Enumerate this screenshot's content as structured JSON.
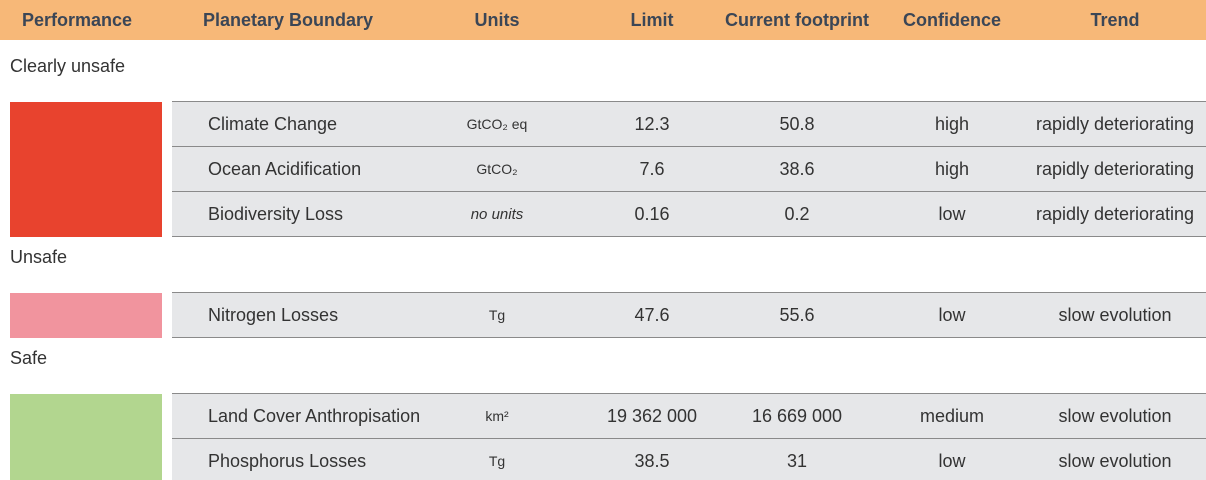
{
  "header": [
    "Performance",
    "Planetary Boundary",
    "Units",
    "Limit",
    "Current footprint",
    "Confidence",
    "Trend"
  ],
  "groups": [
    {
      "label": "Clearly unsafe",
      "color": "#e8432e",
      "rows": [
        [
          "Climate Change",
          "GtCO₂ eq",
          "12.3",
          "50.8",
          "high",
          "rapidly deteriorating"
        ],
        [
          "Ocean Acidification",
          "GtCO₂",
          "7.6",
          "38.6",
          "high",
          "rapidly deteriorating"
        ],
        [
          "Biodiversity Loss",
          "no units",
          "0.16",
          "0.2",
          "low",
          "rapidly deteriorating"
        ]
      ]
    },
    {
      "label": "Unsafe",
      "color": "#f1949e",
      "rows": [
        [
          "Nitrogen Losses",
          "Tg",
          "47.6",
          "55.6",
          "low",
          "slow evolution"
        ]
      ]
    },
    {
      "label": "Safe",
      "color": "#b2d68f",
      "rows": [
        [
          "Land Cover Anthropisation",
          "km²",
          "19 362 000",
          "16 669 000",
          "medium",
          "slow evolution"
        ],
        [
          "Phosphorus Losses",
          "Tg",
          "38.5",
          "31",
          "low",
          "slow evolution"
        ]
      ]
    }
  ]
}
